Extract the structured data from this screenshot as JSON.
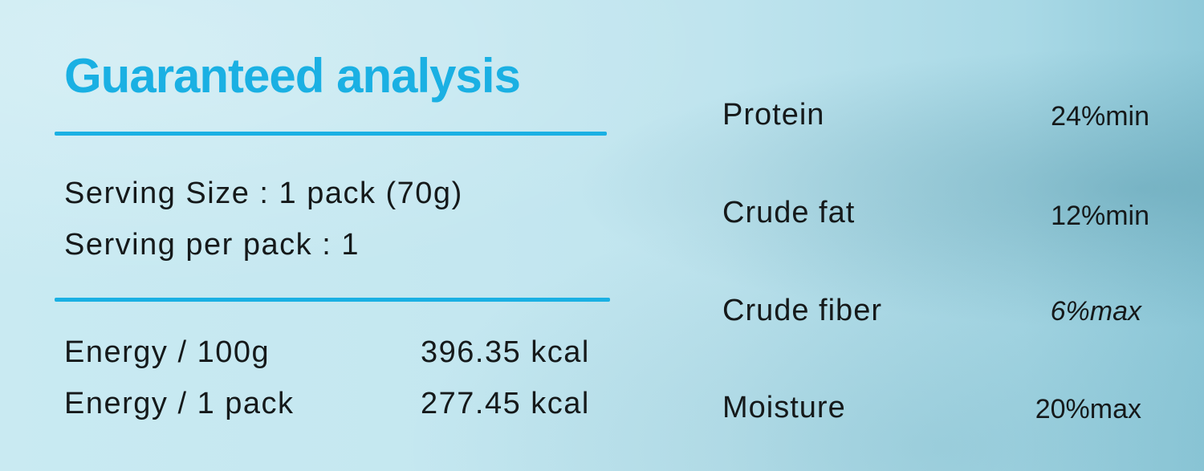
{
  "title": "Guaranteed analysis",
  "serving": {
    "size": "Serving Size : 1 pack (70g)",
    "per_pack": "Serving per pack : 1"
  },
  "energy": [
    {
      "label": "Energy / 100g",
      "value": "396.35 kcal"
    },
    {
      "label": "Energy / 1 pack",
      "value": "277.45 kcal"
    }
  ],
  "nutrients": [
    {
      "label": "Protein",
      "value": "24%min"
    },
    {
      "label": "Crude fat",
      "value": "12%min"
    },
    {
      "label": "Crude fiber",
      "value": "6%max"
    },
    {
      "label": "Moisture",
      "value": "20%max"
    }
  ],
  "colors": {
    "title": "#1ab0e3",
    "background": "#c4e7f0",
    "text": "#15191a"
  }
}
